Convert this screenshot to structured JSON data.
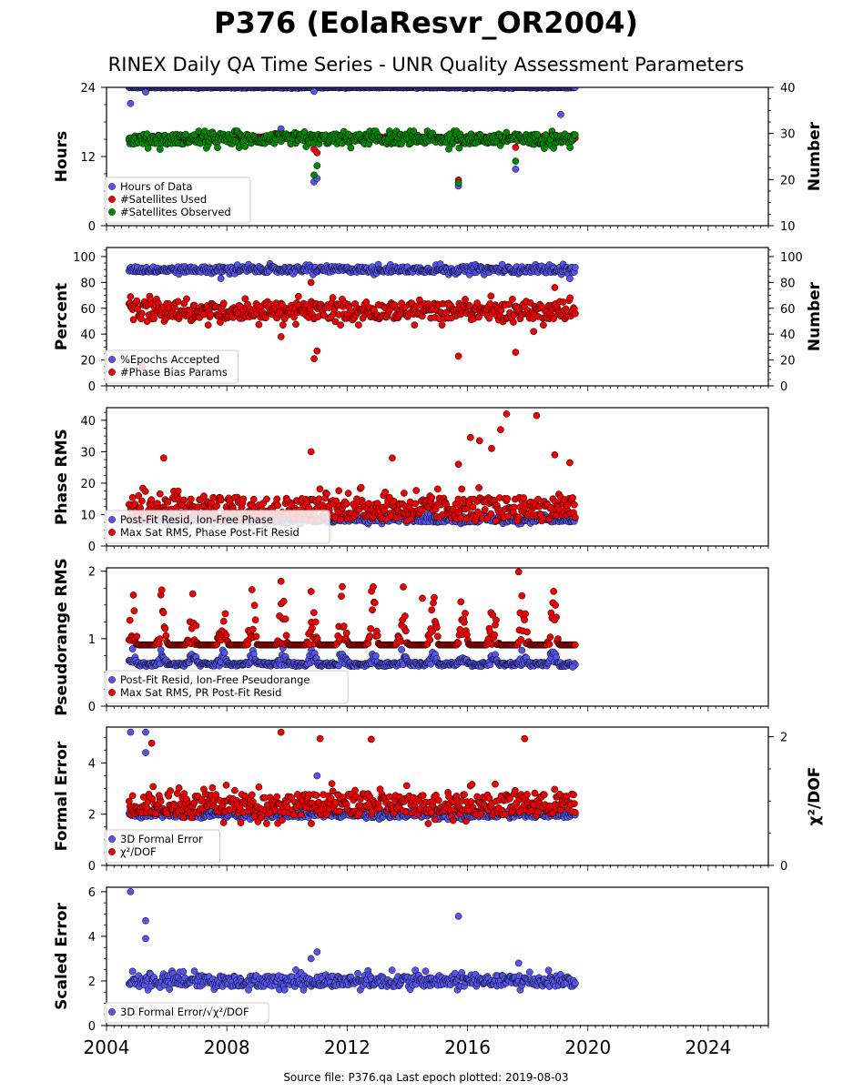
{
  "title": "P376 (EolaResvr_OR2004)",
  "subtitle": "RINEX Daily QA Time Series - UNR Quality Assessment Parameters",
  "footer": "Source file: P376.qa Last epoch plotted: 2019-08-03",
  "colors": {
    "blue": "#5555ee",
    "red": "#ee0000",
    "green": "#008800"
  },
  "x_axis": {
    "range": [
      2004,
      2026
    ],
    "ticks": [
      2004,
      2008,
      2012,
      2016,
      2020,
      2024
    ],
    "tick_labels": [
      "2004",
      "2008",
      "2012",
      "2016",
      "2020",
      "2024"
    ]
  },
  "chart_data": [
    {
      "type": "scatter",
      "id": "p1",
      "ylabel": "Hours",
      "ylim": [
        0,
        24
      ],
      "yticks": [
        0,
        12,
        24
      ],
      "y2label": "Number",
      "y2lim": [
        10,
        40
      ],
      "y2ticks": [
        10,
        20,
        30,
        40
      ],
      "legend": "bottom-left",
      "series": [
        {
          "name": "Hours of Data",
          "axis": "left",
          "color": "#5555ee",
          "base": 24,
          "range": [
            23.6,
            24
          ],
          "outliers": [
            [
              2004.8,
              21.2
            ],
            [
              2005.3,
              23.2
            ],
            [
              2009.8,
              16.8
            ],
            [
              2010.9,
              23.3
            ],
            [
              2010.9,
              7.6
            ],
            [
              2011.0,
              8.2
            ],
            [
              2015.7,
              6.9
            ],
            [
              2017.6,
              9.8
            ],
            [
              2019.1,
              19.3
            ]
          ]
        },
        {
          "name": "#Satellites Used",
          "axis": "right",
          "color": "#ee0000",
          "base": 29,
          "range": [
            28.5,
            29.5
          ],
          "outliers": [
            [
              2009.6,
              30.0
            ],
            [
              2010.9,
              26.6
            ],
            [
              2011.0,
              25.8
            ],
            [
              2015.7,
              19.9
            ],
            [
              2017.6,
              27.0
            ]
          ]
        },
        {
          "name": "#Satellites Observed",
          "axis": "right",
          "color": "#008800",
          "base": 28.8,
          "range": [
            26,
            30.5
          ],
          "outliers": [
            [
              2010.9,
              21.0
            ],
            [
              2011.0,
              23.0
            ],
            [
              2015.7,
              19.3
            ],
            [
              2017.6,
              24.0
            ]
          ]
        }
      ]
    },
    {
      "type": "scatter",
      "id": "p2",
      "ylabel": "Percent",
      "ylim": [
        0,
        107
      ],
      "yticks": [
        0,
        20,
        40,
        60,
        80,
        100
      ],
      "y2label": "Number",
      "y2lim": [
        0,
        107
      ],
      "y2ticks": [
        0,
        20,
        40,
        60,
        80,
        100
      ],
      "legend": "bottom-left",
      "series": [
        {
          "name": "%Epochs Accepted",
          "axis": "left",
          "color": "#5555ee",
          "base": 90,
          "range": [
            86,
            95
          ],
          "outliers": [
            [
              2007.8,
              83
            ],
            [
              2019.4,
              83
            ]
          ]
        },
        {
          "name": "#Phase Bias Params",
          "axis": "right",
          "color": "#ee0000",
          "base": 58,
          "range": [
            47,
            72
          ],
          "outliers": [
            [
              2004.8,
              69
            ],
            [
              2005.2,
              15
            ],
            [
              2009.8,
              38
            ],
            [
              2010.8,
              80
            ],
            [
              2010.9,
              21
            ],
            [
              2011.0,
              27
            ],
            [
              2015.7,
              23
            ],
            [
              2017.6,
              26
            ],
            [
              2018.2,
              42
            ],
            [
              2018.9,
              76
            ]
          ]
        }
      ]
    },
    {
      "type": "scatter",
      "id": "p3",
      "ylabel": "Phase RMS",
      "ylim": [
        0,
        44
      ],
      "yticks": [
        0,
        10,
        20,
        30,
        40
      ],
      "legend": "bottom-left",
      "series": [
        {
          "name": "Post-Fit Resid, Ion-Free Phase",
          "axis": "left",
          "color": "#5555ee",
          "base": 8.5,
          "range": [
            7,
            10.5
          ],
          "outliers": [
            [
              2019.5,
              9.5
            ]
          ]
        },
        {
          "name": "Max Sat RMS, Phase Post-Fit Resid",
          "axis": "left",
          "color": "#ee0000",
          "base": 12,
          "range": [
            8,
            22
          ],
          "outliers": [
            [
              2005.9,
              28
            ],
            [
              2010.8,
              30
            ],
            [
              2013.5,
              28
            ],
            [
              2015.7,
              26
            ],
            [
              2016.1,
              34.5
            ],
            [
              2016.4,
              33.5
            ],
            [
              2016.8,
              31
            ],
            [
              2017.1,
              37
            ],
            [
              2017.3,
              42
            ],
            [
              2018.3,
              41.5
            ],
            [
              2018.9,
              29
            ],
            [
              2019.4,
              26.5
            ]
          ]
        }
      ]
    },
    {
      "type": "scatter",
      "id": "p4",
      "ylabel": "Pseudorange RMS",
      "ylim": [
        0,
        2.05
      ],
      "yticks": [
        0,
        1,
        2
      ],
      "legend": "bottom-left",
      "series": [
        {
          "name": "Post-Fit Resid, Ion-Free Pseudorange",
          "axis": "left",
          "color": "#5555ee",
          "base": 0.66,
          "range": [
            0.55,
            0.95
          ],
          "outliers": [
            [
              2019.5,
              0.58
            ]
          ]
        },
        {
          "name": "Max Sat RMS, PR Post-Fit Resid",
          "axis": "left",
          "color": "#ee0000",
          "base": 1.0,
          "range": [
            0.75,
            1.8
          ],
          "outliers": [
            [
              2009.8,
              1.85
            ],
            [
              2010.8,
              1.7
            ],
            [
              2014.5,
              1.6
            ],
            [
              2017.7,
              1.99
            ]
          ]
        }
      ]
    },
    {
      "type": "scatter",
      "id": "p5",
      "ylabel": "Formal Error",
      "ylim": [
        0,
        5.4
      ],
      "yticks": [
        0,
        2,
        4
      ],
      "y2label": "χ²/DOF",
      "y2lim": [
        0,
        2.15
      ],
      "y2ticks": [
        0,
        2
      ],
      "legend": "bottom-left",
      "series": [
        {
          "name": "3D Formal Error",
          "axis": "left",
          "color": "#5555ee",
          "base": 2.0,
          "range": [
            1.8,
            2.3
          ],
          "outliers": [
            [
              2004.8,
              5.2
            ],
            [
              2005.3,
              5.2
            ],
            [
              2005.3,
              4.4
            ],
            [
              2011.0,
              3.5
            ]
          ]
        },
        {
          "name": "χ²/DOF",
          "axis": "right",
          "color": "#ee0000",
          "base": 0.95,
          "range": [
            0.65,
            1.3
          ],
          "outliers": [
            [
              2005.5,
              1.9
            ],
            [
              2009.8,
              2.07
            ],
            [
              2011.1,
              1.97
            ],
            [
              2012.8,
              1.96
            ],
            [
              2017.9,
              1.97
            ]
          ]
        }
      ]
    },
    {
      "type": "scatter",
      "id": "p6",
      "ylabel": "Scaled Error",
      "ylim": [
        0,
        6.2
      ],
      "yticks": [
        0,
        2,
        4,
        6
      ],
      "legend": "bottom-left",
      "series": [
        {
          "name": "3D Formal Error/√χ²/DOF",
          "axis": "left",
          "color": "#5555ee",
          "base": 2.0,
          "range": [
            1.6,
            2.6
          ],
          "outliers": [
            [
              2004.8,
              6.0
            ],
            [
              2005.3,
              4.7
            ],
            [
              2005.3,
              3.9
            ],
            [
              2010.8,
              3.0
            ],
            [
              2011.0,
              3.3
            ],
            [
              2015.7,
              4.9
            ],
            [
              2017.7,
              2.8
            ]
          ]
        }
      ]
    }
  ],
  "data_span": [
    2004.75,
    2019.58
  ]
}
